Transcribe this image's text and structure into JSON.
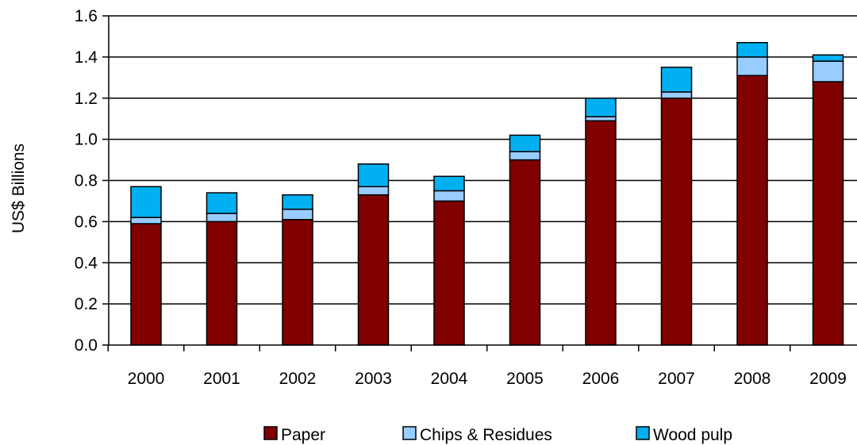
{
  "chart_data": {
    "type": "bar",
    "stacked": true,
    "title": "",
    "xlabel": "",
    "ylabel": "US$ Billions",
    "ylim": [
      0,
      1.6
    ],
    "yticks": [
      "0.0",
      "0.2",
      "0.4",
      "0.6",
      "0.8",
      "1.0",
      "1.2",
      "1.4",
      "1.6"
    ],
    "grid": true,
    "legend_position": "bottom",
    "categories": [
      "2000",
      "2001",
      "2002",
      "2003",
      "2004",
      "2005",
      "2006",
      "2007",
      "2008",
      "2009"
    ],
    "series": [
      {
        "name": "Paper",
        "color": "#800000",
        "values": [
          0.59,
          0.6,
          0.61,
          0.73,
          0.7,
          0.9,
          1.09,
          1.2,
          1.31,
          1.28
        ]
      },
      {
        "name": "Chips & Residues",
        "color": "#99ccff",
        "values": [
          0.03,
          0.04,
          0.05,
          0.04,
          0.05,
          0.04,
          0.02,
          0.03,
          0.09,
          0.1
        ]
      },
      {
        "name": "Wood pulp",
        "color": "#00b0f0",
        "values": [
          0.15,
          0.1,
          0.07,
          0.11,
          0.07,
          0.08,
          0.09,
          0.12,
          0.07,
          0.03
        ]
      }
    ]
  }
}
